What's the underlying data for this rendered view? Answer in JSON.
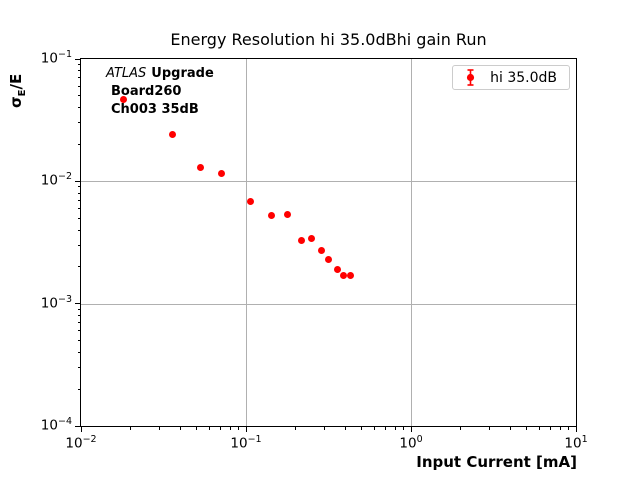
{
  "title": "Energy Resolution hi 35.0dBhi gain Run",
  "axes": {
    "xlabel": "Input Current [mA]",
    "ylabel": {
      "sigma": "σ",
      "sub": "E",
      "rest": "/E"
    },
    "tick_base": "10"
  },
  "annotation": {
    "atlas": "ATLAS",
    "upgrade": "Upgrade",
    "board": "Board260",
    "channel": "Ch003 35dB"
  },
  "legend": {
    "label": "hi 35.0dB"
  },
  "colors": {
    "marker": "#ff0000",
    "grid": "#b0b0b0",
    "spine": "#000000",
    "legend_border": "#cccccc"
  },
  "chart_data": {
    "type": "scatter",
    "title": "Energy Resolution hi 35.0dBhi gain Run",
    "xlabel": "Input Current [mA]",
    "ylabel": "sigma_E/E",
    "xscale": "log",
    "yscale": "log",
    "xlim": [
      0.01,
      10
    ],
    "ylim": [
      0.0001,
      0.1
    ],
    "x_tick_exponents": [
      -2,
      -1,
      0,
      1
    ],
    "y_tick_exponents": [
      -1,
      -2,
      -3,
      -4
    ],
    "grid": true,
    "legend_position": "upper right",
    "series": [
      {
        "name": "hi 35.0dB",
        "color": "#ff0000",
        "marker": "errorbar-dot",
        "x": [
          0.018,
          0.036,
          0.053,
          0.071,
          0.107,
          0.142,
          0.178,
          0.216,
          0.248,
          0.286,
          0.318,
          0.357,
          0.39,
          0.43
        ],
        "y": [
          0.047,
          0.0243,
          0.0129,
          0.0116,
          0.0068,
          0.0053,
          0.0054,
          0.0033,
          0.0034,
          0.0027,
          0.0023,
          0.0019,
          0.00169,
          0.00171
        ]
      }
    ]
  }
}
